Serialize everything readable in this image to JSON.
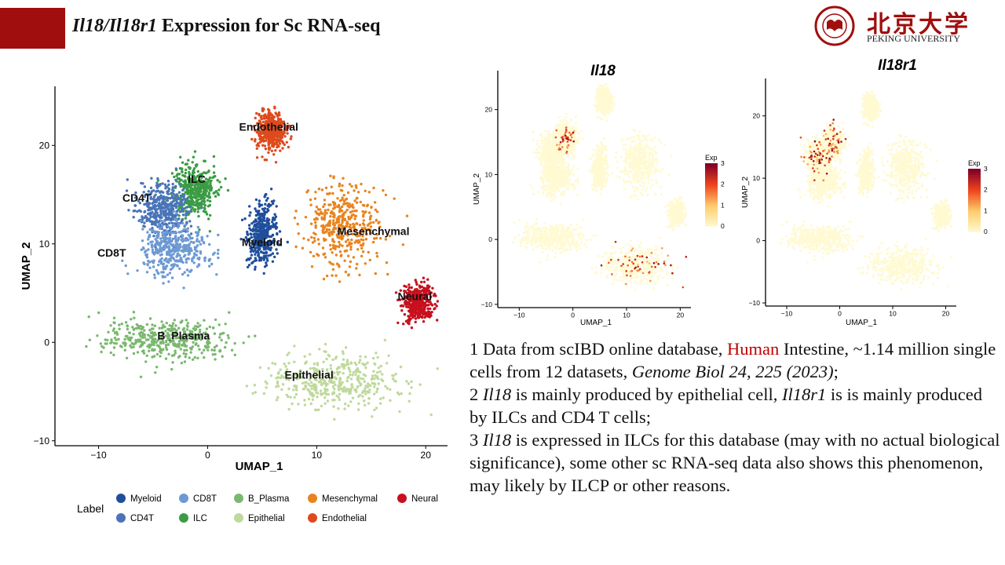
{
  "slide": {
    "title_gene1": "Il18",
    "title_sep": "/",
    "title_gene2": "Il18r1",
    "title_rest": " Expression for Sc RNA-seq"
  },
  "logo": {
    "cn": "北京大学",
    "en": "PEKING UNIVERSITY",
    "seal_text": "PEKING UNIVERSITY 1898"
  },
  "notes": {
    "n1_a": "1 Data from scIBD online database, ",
    "n1_red": "Human",
    "n1_b": " Intestine, ~1.14 million single cells from 12 datasets, ",
    "n1_ital": "Genome Biol 24, 225 (2023)",
    "n1_c": ";",
    "n2_a": "2 ",
    "n2_g1": "Il18",
    "n2_b": " is mainly produced by epithelial cell, ",
    "n2_g2": "Il18r1",
    "n2_c": " is is mainly produced by ILCs and CD4 T cells;",
    "n3_a": "3 ",
    "n3_g1": "Il18",
    "n3_b": " is expressed in ILCs for this database (may with no actual biological significance), some other sc RNA-seq data also shows this phenomenon, may likely by ILCP or other reasons."
  },
  "colors": {
    "Myeloid": "#1f4e9c",
    "CD4T": "#4a74b8",
    "CD8T": "#6e9ad3",
    "ILC": "#3a9c43",
    "B_Plasma": "#7ab86f",
    "Epithelial": "#bfd99c",
    "Mesenchymal": "#e8841f",
    "Endothelial": "#de4a1c",
    "Neural": "#c8101e",
    "accent": "#a10e0e"
  },
  "chart_data": [
    {
      "type": "scatter",
      "title": "",
      "xlabel": "UMAP_1",
      "ylabel": "UMAP_2",
      "xlim": [
        -14,
        22
      ],
      "ylim": [
        -10.5,
        26
      ],
      "xticks": [
        -10,
        0,
        10,
        20
      ],
      "yticks": [
        -10,
        0,
        10,
        20
      ],
      "grid": false,
      "legend_title": "Label",
      "legend_position": "bottom",
      "legend": [
        "Myeloid",
        "CD8T",
        "B_Plasma",
        "Mesenchymal",
        "Neural",
        "CD4T",
        "ILC",
        "Epithelial",
        "Endothelial"
      ],
      "clusters": [
        {
          "name": "Endothelial",
          "center": [
            5.8,
            21.5
          ],
          "spread": [
            1.1,
            1.6
          ],
          "label_at": [
            5.6,
            21.5
          ]
        },
        {
          "name": "ILC",
          "center": [
            -1.2,
            15.5
          ],
          "spread": [
            1.6,
            2.2
          ],
          "label_at": [
            -1.0,
            16.2
          ]
        },
        {
          "name": "CD4T",
          "center": [
            -4.0,
            13.5
          ],
          "spread": [
            2.0,
            2.2
          ],
          "label_at": [
            -6.5,
            14.3
          ]
        },
        {
          "name": "CD8T",
          "center": [
            -3.2,
            9.5
          ],
          "spread": [
            2.6,
            2.1
          ],
          "label_at": [
            -8.8,
            8.7
          ]
        },
        {
          "name": "Myeloid",
          "center": [
            5.0,
            11.0
          ],
          "spread": [
            1.1,
            2.3
          ],
          "label_at": [
            5.0,
            9.8
          ]
        },
        {
          "name": "Mesenchymal",
          "center": [
            12.5,
            12.0
          ],
          "spread": [
            3.0,
            3.5
          ],
          "label_at": [
            15.2,
            10.9
          ]
        },
        {
          "name": "Neural",
          "center": [
            19.3,
            4.0
          ],
          "spread": [
            1.1,
            1.5
          ],
          "label_at": [
            19.0,
            4.3
          ]
        },
        {
          "name": "B_Plasma",
          "center": [
            -4.0,
            0.3
          ],
          "spread": [
            4.8,
            1.7
          ],
          "label_at": [
            -2.2,
            0.3
          ]
        },
        {
          "name": "Epithelial",
          "center": [
            11.5,
            -4.0
          ],
          "spread": [
            5.0,
            2.3
          ],
          "label_at": [
            9.3,
            -3.7
          ]
        }
      ]
    },
    {
      "type": "scatter",
      "title": "Il18",
      "xlabel": "UMAP_1",
      "ylabel": "UMAP_2",
      "xlim": [
        -14,
        22
      ],
      "ylim": [
        -10.5,
        26
      ],
      "xticks": [
        -10,
        0,
        10,
        20
      ],
      "yticks": [
        -10,
        0,
        10,
        20
      ],
      "color_label": "Exp",
      "color_range": [
        0,
        3
      ],
      "color_ticks": [
        0,
        1,
        2,
        3
      ],
      "high_expression_clusters": [
        "Epithelial",
        "ILC"
      ]
    },
    {
      "type": "scatter",
      "title": "Il18r1",
      "xlabel": "UMAP_1",
      "ylabel": "UMAP_2",
      "xlim": [
        -14,
        22
      ],
      "ylim": [
        -10.5,
        26
      ],
      "xticks": [
        -10,
        0,
        10,
        20
      ],
      "yticks": [
        -10,
        0,
        10,
        20
      ],
      "color_label": "Exp",
      "color_range": [
        0,
        3
      ],
      "color_ticks": [
        0,
        1,
        2,
        3
      ],
      "high_expression_clusters": [
        "ILC",
        "CD4T"
      ]
    }
  ]
}
